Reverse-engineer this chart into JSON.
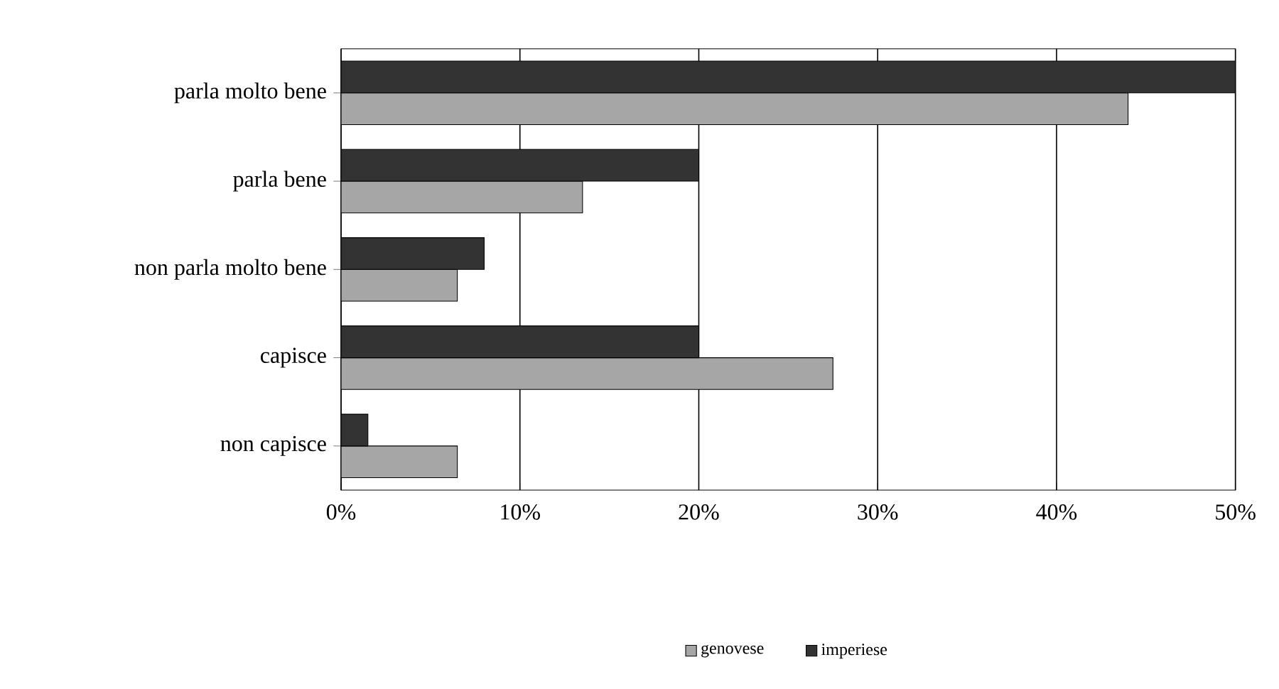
{
  "chart_data": {
    "type": "bar",
    "orientation": "horizontal",
    "categories": [
      "parla molto bene",
      "parla bene",
      "non parla molto bene",
      "capisce",
      "non capisce"
    ],
    "series": [
      {
        "name": "genovese",
        "color": "#a6a6a6",
        "values": [
          44,
          13.5,
          6.5,
          27.5,
          6.5
        ]
      },
      {
        "name": "imperiese",
        "color": "#333333",
        "values": [
          50,
          20,
          8,
          20,
          1.5
        ]
      }
    ],
    "xlim": [
      0,
      50
    ],
    "xticks": [
      {
        "value": 0,
        "label": "0%"
      },
      {
        "value": 10,
        "label": "10%"
      },
      {
        "value": 20,
        "label": "20%"
      },
      {
        "value": 30,
        "label": "30%"
      },
      {
        "value": 40,
        "label": "40%"
      },
      {
        "value": 50,
        "label": "50%"
      }
    ],
    "grid": "x",
    "legend": "bottom"
  }
}
